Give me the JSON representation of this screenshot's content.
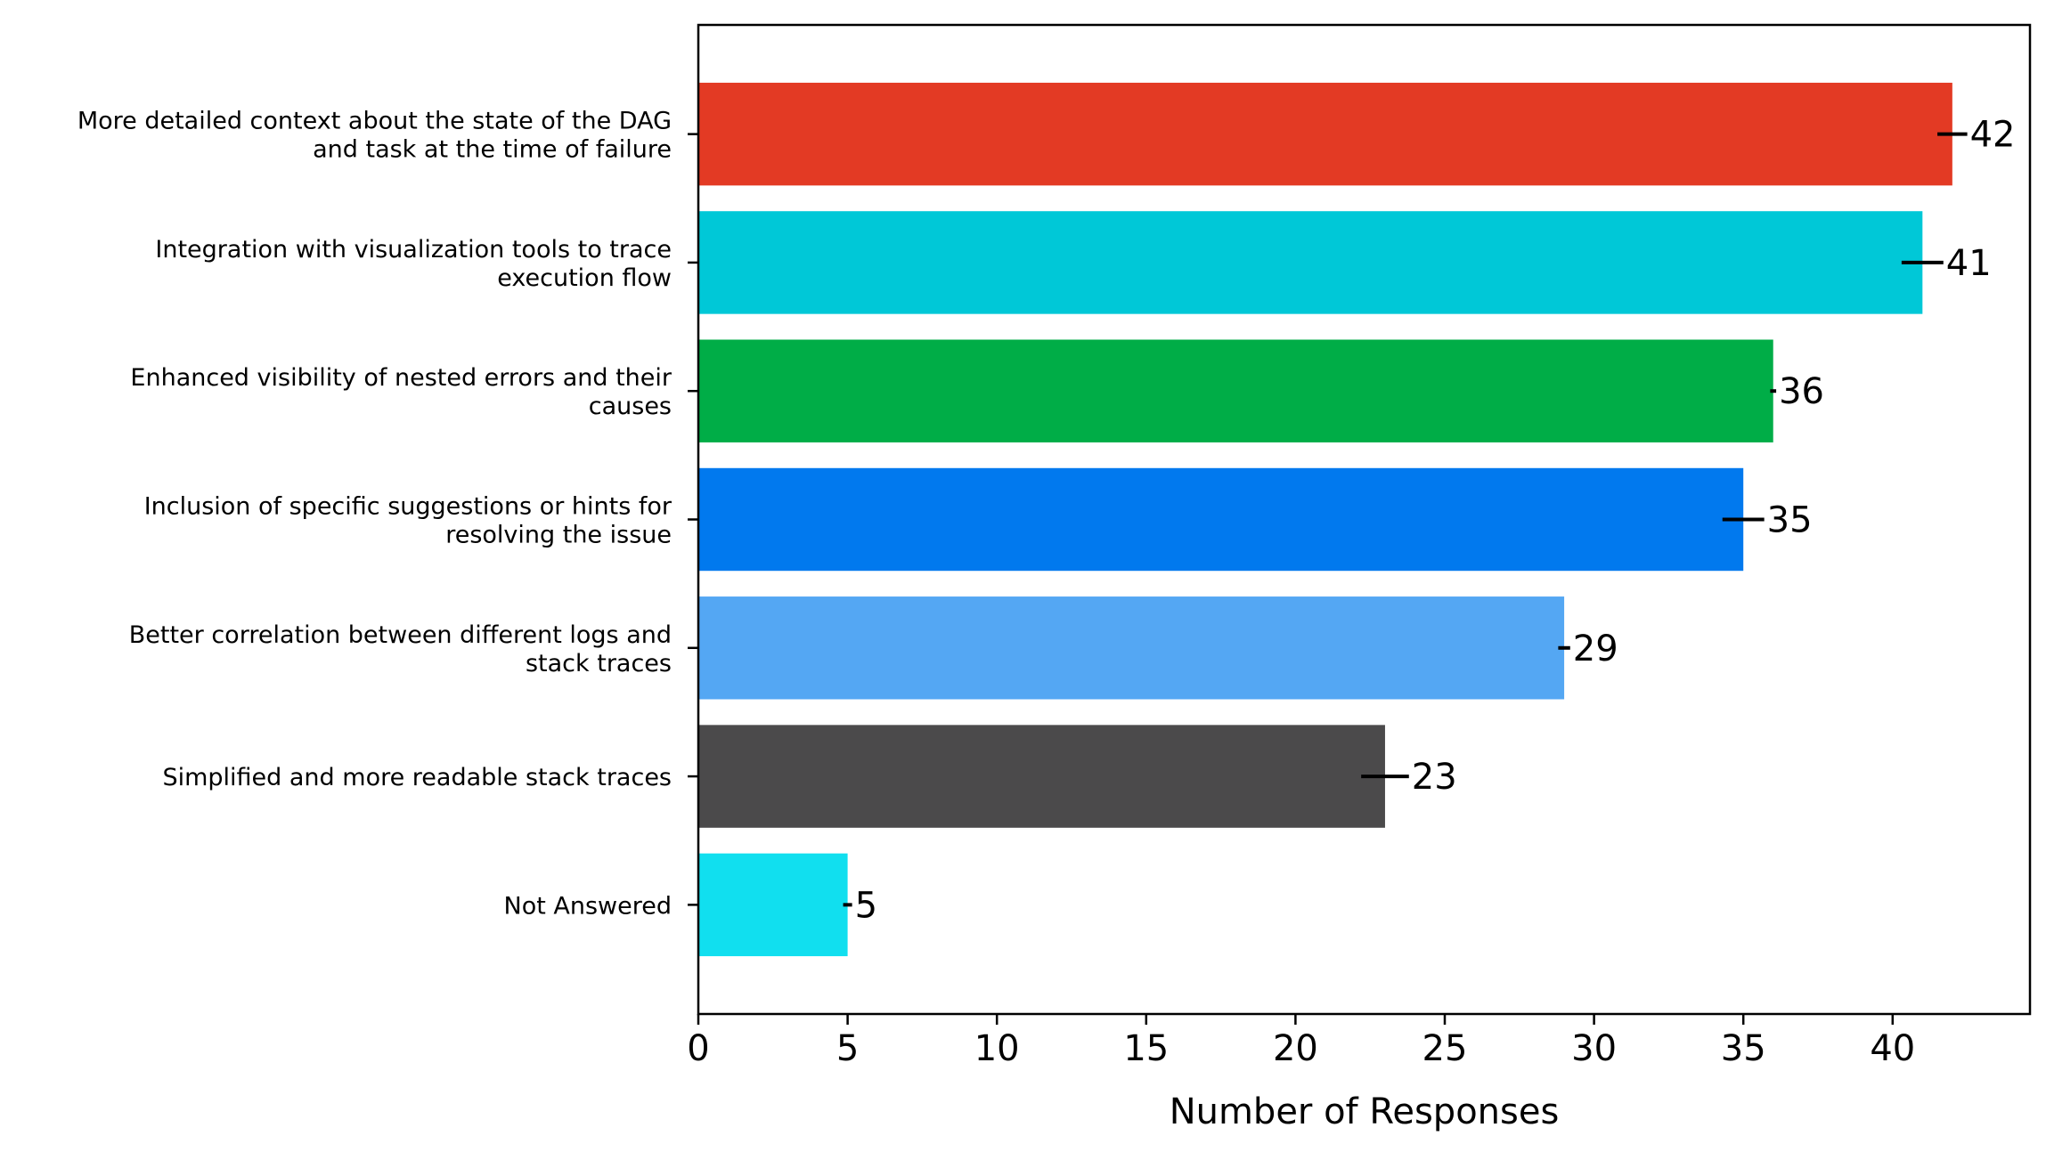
{
  "chart_data": {
    "type": "bar",
    "orientation": "horizontal",
    "title": "",
    "xlabel": "Number of Responses",
    "ylabel": "",
    "xlim": [
      0,
      44.6
    ],
    "xticks": [
      0,
      5,
      10,
      15,
      20,
      25,
      30,
      35,
      40
    ],
    "grid": false,
    "legend": "none",
    "categories": [
      "More detailed context about the state of the DAG\nand task at the time of failure",
      "Integration with visualization tools to trace\nexecution flow",
      "Enhanced visibility of nested errors and their\ncauses",
      "Inclusion of specific suggestions or hints for\nresolving the issue",
      "Better correlation between different logs and\nstack traces",
      "Simplified and more readable stack traces",
      "Not Answered"
    ],
    "values": [
      42,
      41,
      36,
      35,
      29,
      23,
      5
    ],
    "value_labels": [
      "42",
      "41",
      "36",
      "35",
      "29",
      "23",
      "5"
    ],
    "errors": [
      0.5,
      0.7,
      0.1,
      0.7,
      0.2,
      0.8,
      0.15
    ],
    "colors": [
      "#E33A24",
      "#00C8D7",
      "#00AD47",
      "#0179EE",
      "#54A7F3",
      "#4B4A4B",
      "#11DFEF"
    ]
  }
}
